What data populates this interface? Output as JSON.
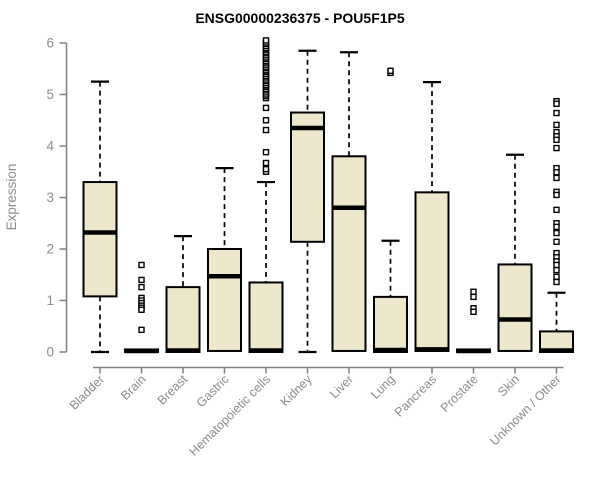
{
  "page": {
    "background": "#ffffff"
  },
  "chart_data": {
    "type": "boxplot",
    "title": "ENSG00000236375 - POU5F1P5",
    "ylabel": "Expression",
    "xlabel": "",
    "ylim": [
      0,
      6
    ],
    "yticks": [
      0,
      1,
      2,
      3,
      4,
      5,
      6
    ],
    "grid": false,
    "legend": false,
    "categories": [
      "Bladder",
      "Brain",
      "Breast",
      "Gastric",
      "Hematopoietic cells",
      "Kidney",
      "Liver",
      "Lung",
      "Pancreas",
      "Prostate",
      "Skin",
      "Unknown / Other"
    ],
    "series": [
      {
        "category": "Bladder",
        "low": 0,
        "q1": 1.08,
        "median": 2.32,
        "q3": 3.3,
        "high": 5.25,
        "outliers": []
      },
      {
        "category": "Brain",
        "low": 0,
        "q1": 0,
        "median": 0.02,
        "q3": 0.05,
        "high": 0.05,
        "outliers": [
          1.69,
          1.4,
          1.26,
          1.05,
          1.0,
          0.95,
          0.9,
          0.86,
          0.82,
          0.43
        ]
      },
      {
        "category": "Breast",
        "low": 0,
        "q1": 0,
        "median": 0.03,
        "q3": 1.26,
        "high": 2.25,
        "outliers": []
      },
      {
        "category": "Gastric",
        "low": 0,
        "q1": 0.02,
        "median": 1.47,
        "q3": 2.0,
        "high": 3.57,
        "outliers": []
      },
      {
        "category": "Hematopoietic cells",
        "low": 0,
        "q1": 0,
        "median": 0.03,
        "q3": 1.35,
        "high": 3.3,
        "outliers": [
          3.5,
          3.55,
          3.67,
          3.88,
          4.31,
          4.5,
          4.74,
          4.93,
          4.97,
          5.0,
          5.04,
          5.08,
          5.11,
          5.15,
          5.18,
          5.22,
          5.26,
          5.29,
          5.33,
          5.36,
          5.4,
          5.44,
          5.47,
          5.51,
          5.54,
          5.58,
          5.62,
          5.65,
          5.69,
          5.72,
          5.76,
          5.8,
          5.83,
          5.87,
          5.9,
          5.94,
          5.98,
          6.01,
          6.05
        ]
      },
      {
        "category": "Kidney",
        "low": 0,
        "q1": 2.14,
        "median": 4.35,
        "q3": 4.65,
        "high": 5.85,
        "outliers": []
      },
      {
        "category": "Liver",
        "low": 0,
        "q1": 0.02,
        "median": 2.8,
        "q3": 3.8,
        "high": 5.82,
        "outliers": []
      },
      {
        "category": "Lung",
        "low": 0,
        "q1": 0,
        "median": 0.04,
        "q3": 1.07,
        "high": 2.16,
        "outliers": [
          5.42,
          5.46
        ]
      },
      {
        "category": "Pancreas",
        "low": 0,
        "q1": 0.02,
        "median": 0.05,
        "q3": 3.1,
        "high": 5.24,
        "outliers": []
      },
      {
        "category": "Prostate",
        "low": 0,
        "q1": 0,
        "median": 0.02,
        "q3": 0.05,
        "high": 0.05,
        "outliers": [
          1.17,
          1.07,
          0.85,
          0.78
        ]
      },
      {
        "category": "Skin",
        "low": 0,
        "q1": 0.02,
        "median": 0.63,
        "q3": 1.7,
        "high": 3.83,
        "outliers": []
      },
      {
        "category": "Unknown / Other",
        "low": 0,
        "q1": 0,
        "median": 0.03,
        "q3": 0.4,
        "high": 1.15,
        "outliers": [
          4.87,
          4.82,
          4.64,
          4.41,
          4.27,
          4.19,
          4.12,
          3.96,
          3.57,
          3.49,
          3.38,
          3.11,
          3.05,
          2.76,
          2.5,
          2.43,
          2.31,
          2.14,
          1.92,
          1.84,
          1.76,
          1.69,
          1.59,
          1.46,
          1.36
        ]
      }
    ],
    "colors": {
      "box_fill": "#EDE7CC",
      "box_border": "#000000",
      "median": "#000000",
      "whisker": "#000000",
      "outlier_fill": "#ffffff",
      "outlier_border": "#000000",
      "axis": "#808080",
      "tick_label": "#8c8c8c",
      "title": "#000000",
      "background": "#ffffff"
    }
  }
}
